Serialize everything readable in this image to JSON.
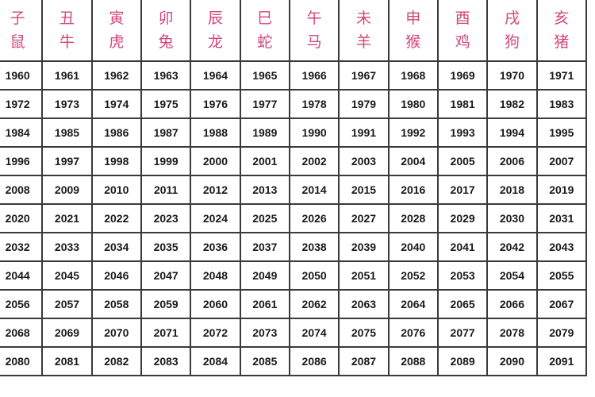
{
  "headers": [
    {
      "branch": "子",
      "animal": "鼠"
    },
    {
      "branch": "丑",
      "animal": "牛"
    },
    {
      "branch": "寅",
      "animal": "虎"
    },
    {
      "branch": "卯",
      "animal": "兔"
    },
    {
      "branch": "辰",
      "animal": "龙"
    },
    {
      "branch": "巳",
      "animal": "蛇"
    },
    {
      "branch": "午",
      "animal": "马"
    },
    {
      "branch": "未",
      "animal": "羊"
    },
    {
      "branch": "申",
      "animal": "猴"
    },
    {
      "branch": "酉",
      "animal": "鸡"
    },
    {
      "branch": "戌",
      "animal": "狗"
    },
    {
      "branch": "亥",
      "animal": "猪"
    }
  ],
  "start_years": [
    1960,
    1972,
    1984,
    1996,
    2008,
    2020,
    2032,
    2044,
    2056,
    2068,
    2080
  ],
  "colors": {
    "header_text": "#d2477a",
    "border": "#3a3a3a"
  }
}
